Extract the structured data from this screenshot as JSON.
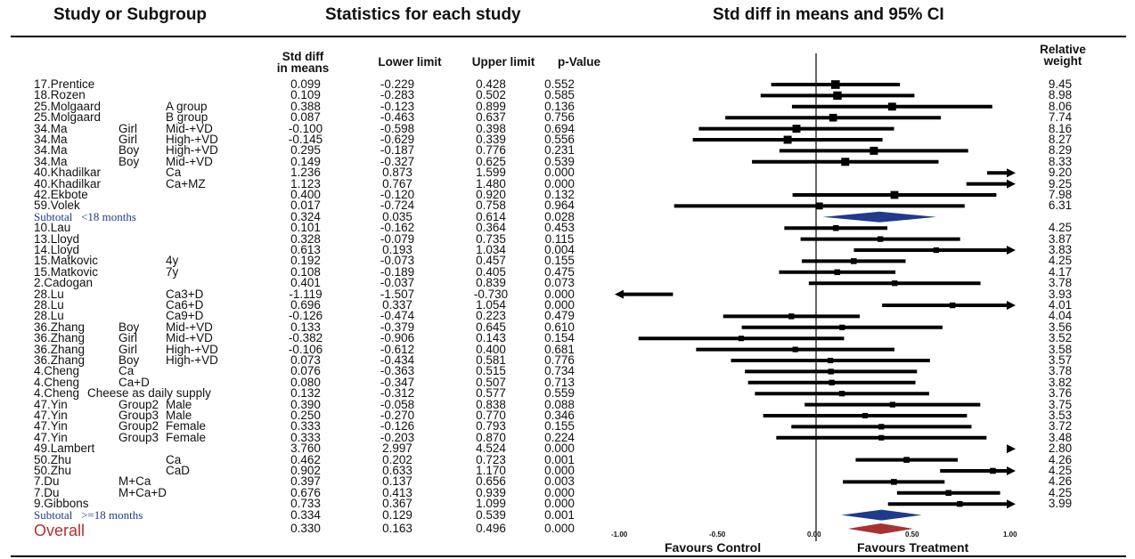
{
  "headers": {
    "study": "Study or Subgroup",
    "stats": "Statistics for each study",
    "plot": "Std diff in means and 95% CI"
  },
  "columns": {
    "smd_line1": "Std diff",
    "smd_line2": "in means",
    "lower": "Lower limit",
    "upper": "Upper limit",
    "p": "p-Value",
    "weight_line1": "Relative",
    "weight_line2": "weight"
  },
  "axis": {
    "ticks": [
      "-1.00",
      "-0.50",
      "0.00",
      "0.50",
      "1.00"
    ],
    "favours_left": "Favours Control",
    "favours_right": "Favours Treatment"
  },
  "colors": {
    "marker": "#000000",
    "subtotal_diamond": "#1f3b8c",
    "overall_diamond": "#a83232",
    "subtotal_text": "#1f3b8c",
    "overall_text": "#b03030"
  },
  "chart_data": {
    "type": "forest",
    "xlim": [
      -1,
      1
    ],
    "xticks": [
      -1,
      -0.5,
      0,
      0.5,
      1
    ],
    "rows": [
      {
        "name": "17.Prentice",
        "sub1": "",
        "sub2": "",
        "smd": "0.099",
        "lo": "-0.229",
        "hi": "0.428",
        "p": "0.552",
        "w": "9.45",
        "kind": "study",
        "smd_v": 0.099,
        "lo_v": -0.229,
        "hi_v": 0.428,
        "w_v": 9.45
      },
      {
        "name": "18.Rozen",
        "sub1": "",
        "sub2": "",
        "smd": "0.109",
        "lo": "-0.283",
        "hi": "0.502",
        "p": "0.585",
        "w": "8.98",
        "kind": "study",
        "smd_v": 0.109,
        "lo_v": -0.283,
        "hi_v": 0.502,
        "w_v": 8.98
      },
      {
        "name": "25.Molgaard",
        "sub1": "",
        "sub2": "A group",
        "smd": "0.388",
        "lo": "-0.123",
        "hi": "0.899",
        "p": "0.136",
        "w": "8.06",
        "kind": "study",
        "smd_v": 0.388,
        "lo_v": -0.123,
        "hi_v": 0.899,
        "w_v": 8.06
      },
      {
        "name": "25.Molgaard",
        "sub1": "",
        "sub2": "B group",
        "smd": "0.087",
        "lo": "-0.463",
        "hi": "0.637",
        "p": "0.756",
        "w": "7.74",
        "kind": "study",
        "smd_v": 0.087,
        "lo_v": -0.463,
        "hi_v": 0.637,
        "w_v": 7.74
      },
      {
        "name": "34.Ma",
        "sub1": "Girl",
        "sub2": "Mid-+VD",
        "smd": "-0.100",
        "lo": "-0.598",
        "hi": "0.398",
        "p": "0.694",
        "w": "8.16",
        "kind": "study",
        "smd_v": -0.1,
        "lo_v": -0.598,
        "hi_v": 0.398,
        "w_v": 8.16
      },
      {
        "name": "34.Ma",
        "sub1": "Girl",
        "sub2": "High-+VD",
        "smd": "-0.145",
        "lo": "-0.629",
        "hi": "0.339",
        "p": "0.556",
        "w": "8.27",
        "kind": "study",
        "smd_v": -0.145,
        "lo_v": -0.629,
        "hi_v": 0.339,
        "w_v": 8.27
      },
      {
        "name": "34.Ma",
        "sub1": "Boy",
        "sub2": "High-+VD",
        "smd": "0.295",
        "lo": "-0.187",
        "hi": "0.776",
        "p": "0.231",
        "w": "8.29",
        "kind": "study",
        "smd_v": 0.295,
        "lo_v": -0.187,
        "hi_v": 0.776,
        "w_v": 8.29
      },
      {
        "name": "34.Ma",
        "sub1": "Boy",
        "sub2": "Mid-+VD",
        "smd": "0.149",
        "lo": "-0.327",
        "hi": "0.625",
        "p": "0.539",
        "w": "8.33",
        "kind": "study",
        "smd_v": 0.149,
        "lo_v": -0.327,
        "hi_v": 0.625,
        "w_v": 8.33
      },
      {
        "name": "40.Khadilkar",
        "sub1": "",
        "sub2": "Ca",
        "smd": "1.236",
        "lo": "0.873",
        "hi": "1.599",
        "p": "0.000",
        "w": "9.20",
        "kind": "study",
        "smd_v": 1.236,
        "lo_v": 0.873,
        "hi_v": 1.599,
        "w_v": 9.2
      },
      {
        "name": "40.Khadilkar",
        "sub1": "",
        "sub2": "Ca+MZ",
        "smd": "1.123",
        "lo": "0.767",
        "hi": "1.480",
        "p": "0.000",
        "w": "9.25",
        "kind": "study",
        "smd_v": 1.123,
        "lo_v": 0.767,
        "hi_v": 1.48,
        "w_v": 9.25
      },
      {
        "name": "42.Ekbote",
        "sub1": "",
        "sub2": "",
        "smd": "0.400",
        "lo": "-0.120",
        "hi": "0.920",
        "p": "0.132",
        "w": "7.98",
        "kind": "study",
        "smd_v": 0.4,
        "lo_v": -0.12,
        "hi_v": 0.92,
        "w_v": 7.98
      },
      {
        "name": "59.Volek",
        "sub1": "",
        "sub2": "",
        "smd": "0.017",
        "lo": "-0.724",
        "hi": "0.758",
        "p": "0.964",
        "w": "6.31",
        "kind": "study",
        "smd_v": 0.017,
        "lo_v": -0.724,
        "hi_v": 0.758,
        "w_v": 6.31
      },
      {
        "name": "Subtotal   <18 months",
        "sub1": "",
        "sub2": "",
        "smd": "0.324",
        "lo": "0.035",
        "hi": "0.614",
        "p": "0.028",
        "w": "",
        "kind": "subtotal",
        "smd_v": 0.324,
        "lo_v": 0.035,
        "hi_v": 0.614,
        "w_v": 0
      },
      {
        "name": "10.Lau",
        "sub1": "",
        "sub2": "",
        "smd": "0.101",
        "lo": "-0.162",
        "hi": "0.364",
        "p": "0.453",
        "w": "4.25",
        "kind": "study",
        "smd_v": 0.101,
        "lo_v": -0.162,
        "hi_v": 0.364,
        "w_v": 4.25
      },
      {
        "name": "13.Lloyd",
        "sub1": "",
        "sub2": "",
        "smd": "0.328",
        "lo": "-0.079",
        "hi": "0.735",
        "p": "0.115",
        "w": "3.87",
        "kind": "study",
        "smd_v": 0.328,
        "lo_v": -0.079,
        "hi_v": 0.735,
        "w_v": 3.87
      },
      {
        "name": "14.Lloyd",
        "sub1": "",
        "sub2": "",
        "smd": "0.613",
        "lo": "0.193",
        "hi": "1.034",
        "p": "0.004",
        "w": "3.83",
        "kind": "study",
        "smd_v": 0.613,
        "lo_v": 0.193,
        "hi_v": 1.034,
        "w_v": 3.83
      },
      {
        "name": "15.Matkovic",
        "sub1": "",
        "sub2": "4y",
        "smd": "0.192",
        "lo": "-0.073",
        "hi": "0.457",
        "p": "0.155",
        "w": "4.25",
        "kind": "study",
        "smd_v": 0.192,
        "lo_v": -0.073,
        "hi_v": 0.457,
        "w_v": 4.25
      },
      {
        "name": "15.Matkovic",
        "sub1": "",
        "sub2": "7y",
        "smd": "0.108",
        "lo": "-0.189",
        "hi": "0.405",
        "p": "0.475",
        "w": "4.17",
        "kind": "study",
        "smd_v": 0.108,
        "lo_v": -0.189,
        "hi_v": 0.405,
        "w_v": 4.17
      },
      {
        "name": "2.Cadogan",
        "sub1": "",
        "sub2": "",
        "smd": "0.401",
        "lo": "-0.037",
        "hi": "0.839",
        "p": "0.073",
        "w": "3.78",
        "kind": "study",
        "smd_v": 0.401,
        "lo_v": -0.037,
        "hi_v": 0.839,
        "w_v": 3.78
      },
      {
        "name": "28.Lu",
        "sub1": "",
        "sub2": "Ca3+D",
        "smd": "-1.119",
        "lo": "-1.507",
        "hi": "-0.730",
        "p": "0.000",
        "w": "3.93",
        "kind": "study",
        "smd_v": -1.119,
        "lo_v": -1.507,
        "hi_v": -0.73,
        "w_v": 3.93
      },
      {
        "name": "28.Lu",
        "sub1": "",
        "sub2": "Ca6+D",
        "smd": "0.696",
        "lo": "0.337",
        "hi": "1.054",
        "p": "0.000",
        "w": "4.01",
        "kind": "study",
        "smd_v": 0.696,
        "lo_v": 0.337,
        "hi_v": 1.054,
        "w_v": 4.01
      },
      {
        "name": "28.Lu",
        "sub1": "",
        "sub2": "Ca9+D",
        "smd": "-0.126",
        "lo": "-0.474",
        "hi": "0.223",
        "p": "0.479",
        "w": "4.04",
        "kind": "study",
        "smd_v": -0.126,
        "lo_v": -0.474,
        "hi_v": 0.223,
        "w_v": 4.04
      },
      {
        "name": "36.Zhang",
        "sub1": "Boy",
        "sub2": "Mid-+VD",
        "smd": "0.133",
        "lo": "-0.379",
        "hi": "0.645",
        "p": "0.610",
        "w": "3.56",
        "kind": "study",
        "smd_v": 0.133,
        "lo_v": -0.379,
        "hi_v": 0.645,
        "w_v": 3.56
      },
      {
        "name": "36.Zhang",
        "sub1": "Girl",
        "sub2": "Mid-+VD",
        "smd": "-0.382",
        "lo": "-0.906",
        "hi": "0.143",
        "p": "0.154",
        "w": "3.52",
        "kind": "study",
        "smd_v": -0.382,
        "lo_v": -0.906,
        "hi_v": 0.143,
        "w_v": 3.52
      },
      {
        "name": "36.Zhang",
        "sub1": "Girl",
        "sub2": "High-+VD",
        "smd": "-0.106",
        "lo": "-0.612",
        "hi": "0.400",
        "p": "0.681",
        "w": "3.58",
        "kind": "study",
        "smd_v": -0.106,
        "lo_v": -0.612,
        "hi_v": 0.4,
        "w_v": 3.58
      },
      {
        "name": "36.Zhang",
        "sub1": "Boy",
        "sub2": "High-+VD",
        "smd": "0.073",
        "lo": "-0.434",
        "hi": "0.581",
        "p": "0.776",
        "w": "3.57",
        "kind": "study",
        "smd_v": 0.073,
        "lo_v": -0.434,
        "hi_v": 0.581,
        "w_v": 3.57
      },
      {
        "name": "4.Cheng",
        "sub1": "Ca",
        "sub2": "",
        "smd": "0.076",
        "lo": "-0.363",
        "hi": "0.515",
        "p": "0.734",
        "w": "3.78",
        "kind": "study",
        "smd_v": 0.076,
        "lo_v": -0.363,
        "hi_v": 0.515,
        "w_v": 3.78
      },
      {
        "name": "4.Cheng",
        "sub1": "Ca+D",
        "sub2": "",
        "smd": "0.080",
        "lo": "-0.347",
        "hi": "0.507",
        "p": "0.713",
        "w": "3.82",
        "kind": "study",
        "smd_v": 0.08,
        "lo_v": -0.347,
        "hi_v": 0.507,
        "w_v": 3.82
      },
      {
        "name": "4.Cheng",
        "sub1": "Cheese as daily supply",
        "sub2": "",
        "smd": "0.132",
        "lo": "-0.312",
        "hi": "0.577",
        "p": "0.559",
        "w": "3.76",
        "kind": "study",
        "smd_v": 0.132,
        "lo_v": -0.312,
        "hi_v": 0.577,
        "w_v": 3.76
      },
      {
        "name": "47.Yin",
        "sub1": "Group2",
        "sub2": "Male",
        "smd": "0.390",
        "lo": "-0.058",
        "hi": "0.838",
        "p": "0.088",
        "w": "3.75",
        "kind": "study",
        "smd_v": 0.39,
        "lo_v": -0.058,
        "hi_v": 0.838,
        "w_v": 3.75
      },
      {
        "name": "47.Yin",
        "sub1": "Group3",
        "sub2": "Male",
        "smd": "0.250",
        "lo": "-0.270",
        "hi": "0.770",
        "p": "0.346",
        "w": "3.53",
        "kind": "study",
        "smd_v": 0.25,
        "lo_v": -0.27,
        "hi_v": 0.77,
        "w_v": 3.53
      },
      {
        "name": "47.Yin",
        "sub1": "Group2",
        "sub2": "Female",
        "smd": "0.333",
        "lo": "-0.126",
        "hi": "0.793",
        "p": "0.155",
        "w": "3.72",
        "kind": "study",
        "smd_v": 0.333,
        "lo_v": -0.126,
        "hi_v": 0.793,
        "w_v": 3.72
      },
      {
        "name": "47.Yin",
        "sub1": "Group3",
        "sub2": "Female",
        "smd": "0.333",
        "lo": "-0.203",
        "hi": "0.870",
        "p": "0.224",
        "w": "3.48",
        "kind": "study",
        "smd_v": 0.333,
        "lo_v": -0.203,
        "hi_v": 0.87,
        "w_v": 3.48
      },
      {
        "name": "49.Lambert",
        "sub1": "",
        "sub2": "",
        "smd": "3.760",
        "lo": "2.997",
        "hi": "4.524",
        "p": "0.000",
        "w": "2.80",
        "kind": "study",
        "smd_v": 3.76,
        "lo_v": 2.997,
        "hi_v": 4.524,
        "w_v": 2.8
      },
      {
        "name": "50.Zhu",
        "sub1": "",
        "sub2": "Ca",
        "smd": "0.462",
        "lo": "0.202",
        "hi": "0.723",
        "p": "0.001",
        "w": "4.26",
        "kind": "study",
        "smd_v": 0.462,
        "lo_v": 0.202,
        "hi_v": 0.723,
        "w_v": 4.26
      },
      {
        "name": "50.Zhu",
        "sub1": "",
        "sub2": "CaD",
        "smd": "0.902",
        "lo": "0.633",
        "hi": "1.170",
        "p": "0.000",
        "w": "4.25",
        "kind": "study",
        "smd_v": 0.902,
        "lo_v": 0.633,
        "hi_v": 1.17,
        "w_v": 4.25
      },
      {
        "name": "7.Du",
        "sub1": "M+Ca",
        "sub2": "",
        "smd": "0.397",
        "lo": "0.137",
        "hi": "0.656",
        "p": "0.003",
        "w": "4.26",
        "kind": "study",
        "smd_v": 0.397,
        "lo_v": 0.137,
        "hi_v": 0.656,
        "w_v": 4.26
      },
      {
        "name": "7.Du",
        "sub1": "M+Ca+D",
        "sub2": "",
        "smd": "0.676",
        "lo": "0.413",
        "hi": "0.939",
        "p": "0.000",
        "w": "4.25",
        "kind": "study",
        "smd_v": 0.676,
        "lo_v": 0.413,
        "hi_v": 0.939,
        "w_v": 4.25
      },
      {
        "name": "9.Gibbons",
        "sub1": "",
        "sub2": "",
        "smd": "0.733",
        "lo": "0.367",
        "hi": "1.099",
        "p": "0.000",
        "w": "3.99",
        "kind": "study",
        "smd_v": 0.733,
        "lo_v": 0.367,
        "hi_v": 1.099,
        "w_v": 3.99
      },
      {
        "name": "Subtotal   >=18 months",
        "sub1": "",
        "sub2": "",
        "smd": "0.334",
        "lo": "0.129",
        "hi": "0.539",
        "p": "0.001",
        "w": "",
        "kind": "subtotal",
        "smd_v": 0.334,
        "lo_v": 0.129,
        "hi_v": 0.539,
        "w_v": 0
      },
      {
        "name": "Overall",
        "sub1": "",
        "sub2": "",
        "smd": "0.330",
        "lo": "0.163",
        "hi": "0.496",
        "p": "0.000",
        "w": "",
        "kind": "overall",
        "smd_v": 0.33,
        "lo_v": 0.163,
        "hi_v": 0.496,
        "w_v": 0
      }
    ]
  }
}
